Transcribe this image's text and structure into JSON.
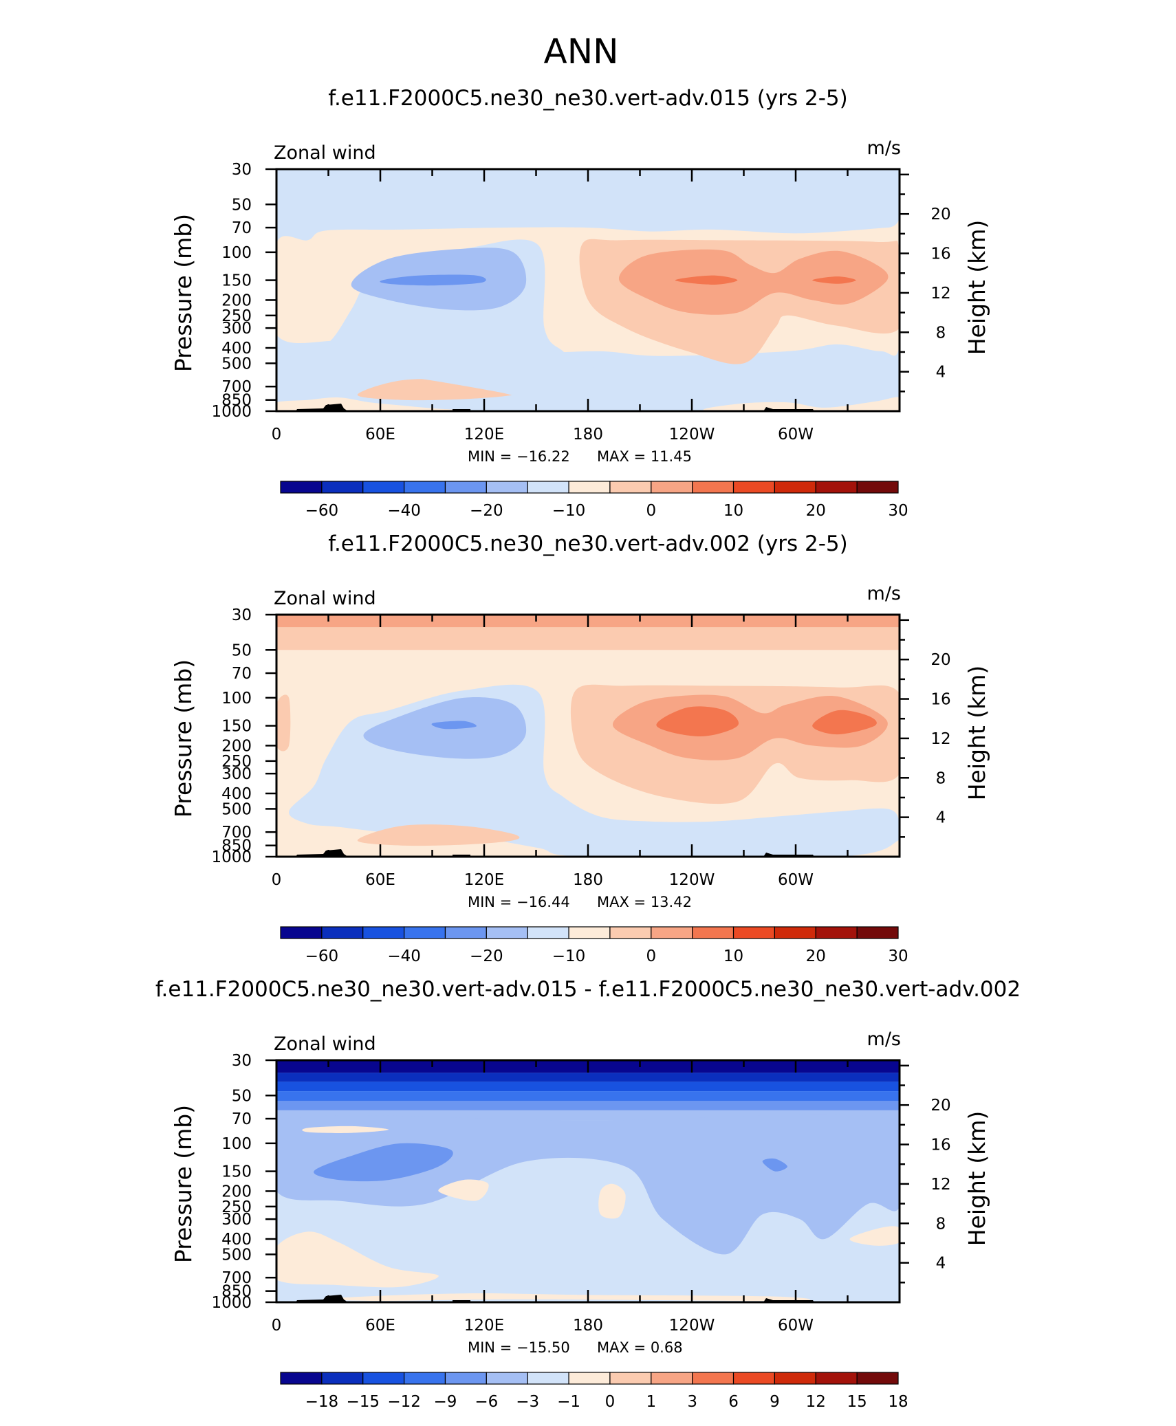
{
  "figure": {
    "title": "ANN"
  },
  "chart_data": [
    {
      "type": "heatmap",
      "title": "f.e11.F2000C5.ne30_ne30.vert-adv.015 (yrs 2-5)",
      "variable": "Zonal wind",
      "units": "m/s",
      "xlabel": "",
      "ylabel": "Pressure (mb)",
      "ylabel_right": "Height (km)",
      "x_ticks": [
        "0",
        "60E",
        "120E",
        "180",
        "120W",
        "60W"
      ],
      "y_ticks": [
        "30",
        "50",
        "70",
        "100",
        "150",
        "200",
        "250",
        "300",
        "400",
        "500",
        "700",
        "850",
        "1000"
      ],
      "y_ticks_right": [
        "20",
        "16",
        "12",
        "8",
        "4"
      ],
      "ylim": [
        1000,
        30
      ],
      "min_label": "MIN = −16.22",
      "max_label": "MAX =   11.45",
      "min": -16.22,
      "max": 11.45,
      "colorbar": {
        "labels": [
          "−60",
          "−40",
          "−20",
          "−10",
          "0",
          "10",
          "20",
          "30"
        ],
        "colors": [
          "#08068f",
          "#0b2fbd",
          "#1852e0",
          "#3873ed",
          "#6c96f0",
          "#a5bff4",
          "#d2e3f9",
          "#fdebd9",
          "#fbcbb0",
          "#f7a585",
          "#f3764f",
          "#eb4a24",
          "#cf2a0a",
          "#a3120a",
          "#730a0a"
        ]
      }
    },
    {
      "type": "heatmap",
      "title": "f.e11.F2000C5.ne30_ne30.vert-adv.002 (yrs 2-5)",
      "variable": "Zonal wind",
      "units": "m/s",
      "xlabel": "",
      "ylabel": "Pressure (mb)",
      "ylabel_right": "Height (km)",
      "x_ticks": [
        "0",
        "60E",
        "120E",
        "180",
        "120W",
        "60W"
      ],
      "y_ticks": [
        "30",
        "50",
        "70",
        "100",
        "150",
        "200",
        "250",
        "300",
        "400",
        "500",
        "700",
        "850",
        "1000"
      ],
      "y_ticks_right": [
        "20",
        "16",
        "12",
        "8",
        "4"
      ],
      "ylim": [
        1000,
        30
      ],
      "min_label": "MIN = −16.44",
      "max_label": "MAX =   13.42",
      "min": -16.44,
      "max": 13.42,
      "colorbar": {
        "labels": [
          "−60",
          "−40",
          "−20",
          "−10",
          "0",
          "10",
          "20",
          "30"
        ],
        "colors": [
          "#08068f",
          "#0b2fbd",
          "#1852e0",
          "#3873ed",
          "#6c96f0",
          "#a5bff4",
          "#d2e3f9",
          "#fdebd9",
          "#fbcbb0",
          "#f7a585",
          "#f3764f",
          "#eb4a24",
          "#cf2a0a",
          "#a3120a",
          "#730a0a"
        ]
      }
    },
    {
      "type": "heatmap",
      "title": "f.e11.F2000C5.ne30_ne30.vert-adv.015 - f.e11.F2000C5.ne30_ne30.vert-adv.002",
      "variable": "Zonal wind",
      "units": "m/s",
      "xlabel": "",
      "ylabel": "Pressure (mb)",
      "ylabel_right": "Height (km)",
      "x_ticks": [
        "0",
        "60E",
        "120E",
        "180",
        "120W",
        "60W"
      ],
      "y_ticks": [
        "30",
        "50",
        "70",
        "100",
        "150",
        "200",
        "250",
        "300",
        "400",
        "500",
        "700",
        "850",
        "1000"
      ],
      "y_ticks_right": [
        "20",
        "16",
        "12",
        "8",
        "4"
      ],
      "ylim": [
        1000,
        30
      ],
      "min_label": "MIN = −15.50",
      "max_label": "MAX =    0.68",
      "min": -15.5,
      "max": 0.68,
      "colorbar": {
        "labels": [
          "−18",
          "−15",
          "−12",
          "−9",
          "−6",
          "−3",
          "−1",
          "0",
          "1",
          "3",
          "6",
          "9",
          "12",
          "15",
          "18"
        ],
        "colors": [
          "#08068f",
          "#0b2fbd",
          "#1852e0",
          "#3873ed",
          "#6c96f0",
          "#a5bff4",
          "#d2e3f9",
          "#fdebd9",
          "#fbcbb0",
          "#f7a585",
          "#f3764f",
          "#eb4a24",
          "#cf2a0a",
          "#a3120a",
          "#730a0a"
        ]
      }
    }
  ]
}
